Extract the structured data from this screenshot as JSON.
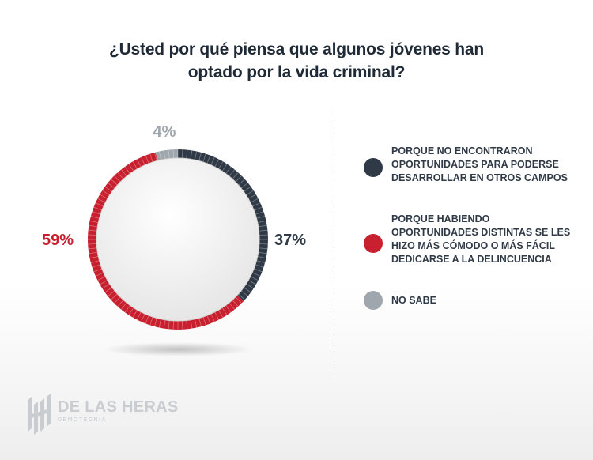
{
  "chart_data": {
    "type": "pie",
    "title_lines": [
      "¿Usted por qué piensa que algunos jóvenes han",
      "optado por la vida criminal?"
    ],
    "categories": [
      "PORQUE NO ENCONTRARON OPORTUNIDADES PARA PODERSE DESARROLLAR EN OTROS CAMPOS",
      "PORQUE HABIENDO OPORTUNIDADES DISTINTAS SE LES HIZO MÁS CÓMODO O MÁS FÁCIL DEDICARSE A LA DELINCUENCIA",
      "NO SABE"
    ],
    "values": [
      37,
      59,
      4
    ],
    "value_labels": [
      "37%",
      "59%",
      "4%"
    ],
    "colors": [
      "#2f3a46",
      "#c8202f",
      "#a0a6ad"
    ],
    "donut": true,
    "legend_position": "right"
  },
  "logo": {
    "name": "DE LAS HERAS",
    "subtitle": "DEMOTECNIA"
  }
}
